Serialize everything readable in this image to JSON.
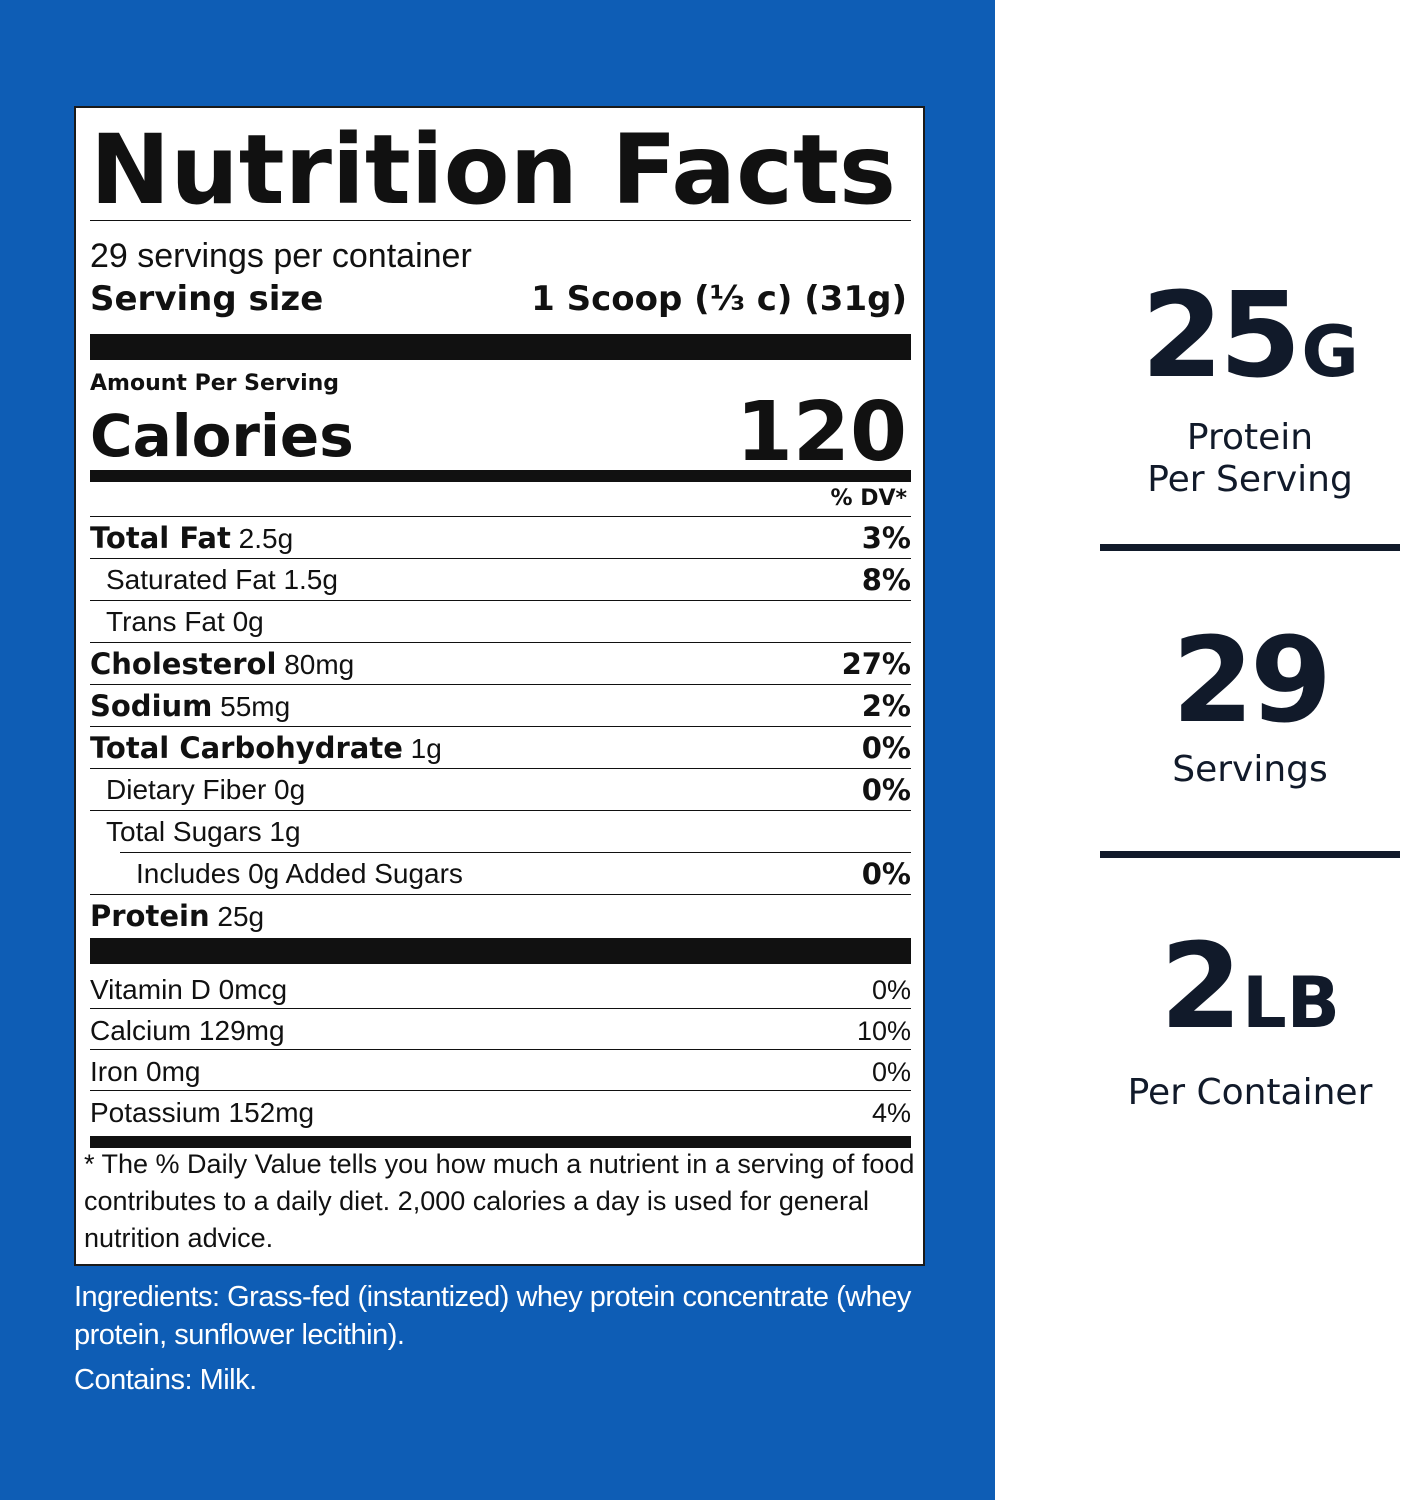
{
  "label": {
    "title": "Nutrition Facts",
    "servings_per_container": "29 servings per container",
    "serving_size_label": "Serving size",
    "serving_size_value": "1 Scoop (⅓ c) (31g)",
    "amount_per_serving": "Amount Per Serving",
    "calories_label": "Calories",
    "calories_value": "120",
    "dv_header": "% DV*",
    "nutrients": [
      {
        "name": "Total Fat",
        "amount": "2.5g",
        "dv": "3%"
      },
      {
        "name": "Saturated Fat",
        "amount": "1.5g",
        "dv": "8%"
      },
      {
        "name": "Trans Fat",
        "amount": "0g",
        "dv": ""
      },
      {
        "name": "Cholesterol",
        "amount": "80mg",
        "dv": "27%"
      },
      {
        "name": "Sodium",
        "amount": "55mg",
        "dv": "2%"
      },
      {
        "name": "Total Carbohydrate",
        "amount": "1g",
        "dv": "0%"
      },
      {
        "name": "Dietary Fiber",
        "amount": "0g",
        "dv": "0%"
      },
      {
        "name": "Total Sugars",
        "amount": "1g",
        "dv": ""
      },
      {
        "name": "Includes 0g Added Sugars",
        "amount": "",
        "dv": "0%"
      },
      {
        "name": "Protein",
        "amount": "25g",
        "dv": ""
      }
    ],
    "vitamins": [
      {
        "name": "Vitamin D",
        "amount": "0mcg",
        "dv": "0%"
      },
      {
        "name": "Calcium",
        "amount": "129mg",
        "dv": "10%"
      },
      {
        "name": "Iron",
        "amount": "0mg",
        "dv": "0%"
      },
      {
        "name": "Potassium",
        "amount": "152mg",
        "dv": "4%"
      }
    ],
    "footnote": "* The % Daily Value tells you how much a nutrient in a serving of food contributes to a daily diet. 2,000 calories a day is used for general nutrition advice."
  },
  "ingredients": "Ingredients: Grass-fed (instantized) whey protein concentrate (whey protein, sunflower lecithin).",
  "contains": "Contains: Milk.",
  "stats": [
    {
      "value": "25",
      "unit": "G",
      "caption_1": "Protein",
      "caption_2": "Per Serving"
    },
    {
      "value": "29",
      "unit": "",
      "caption_1": "Servings",
      "caption_2": ""
    },
    {
      "value": "2",
      "unit": "LB",
      "caption_1": "Per Container",
      "caption_2": ""
    }
  ],
  "colors": {
    "panel_blue": "#0e5db5",
    "stat_text": "#111a2a"
  }
}
